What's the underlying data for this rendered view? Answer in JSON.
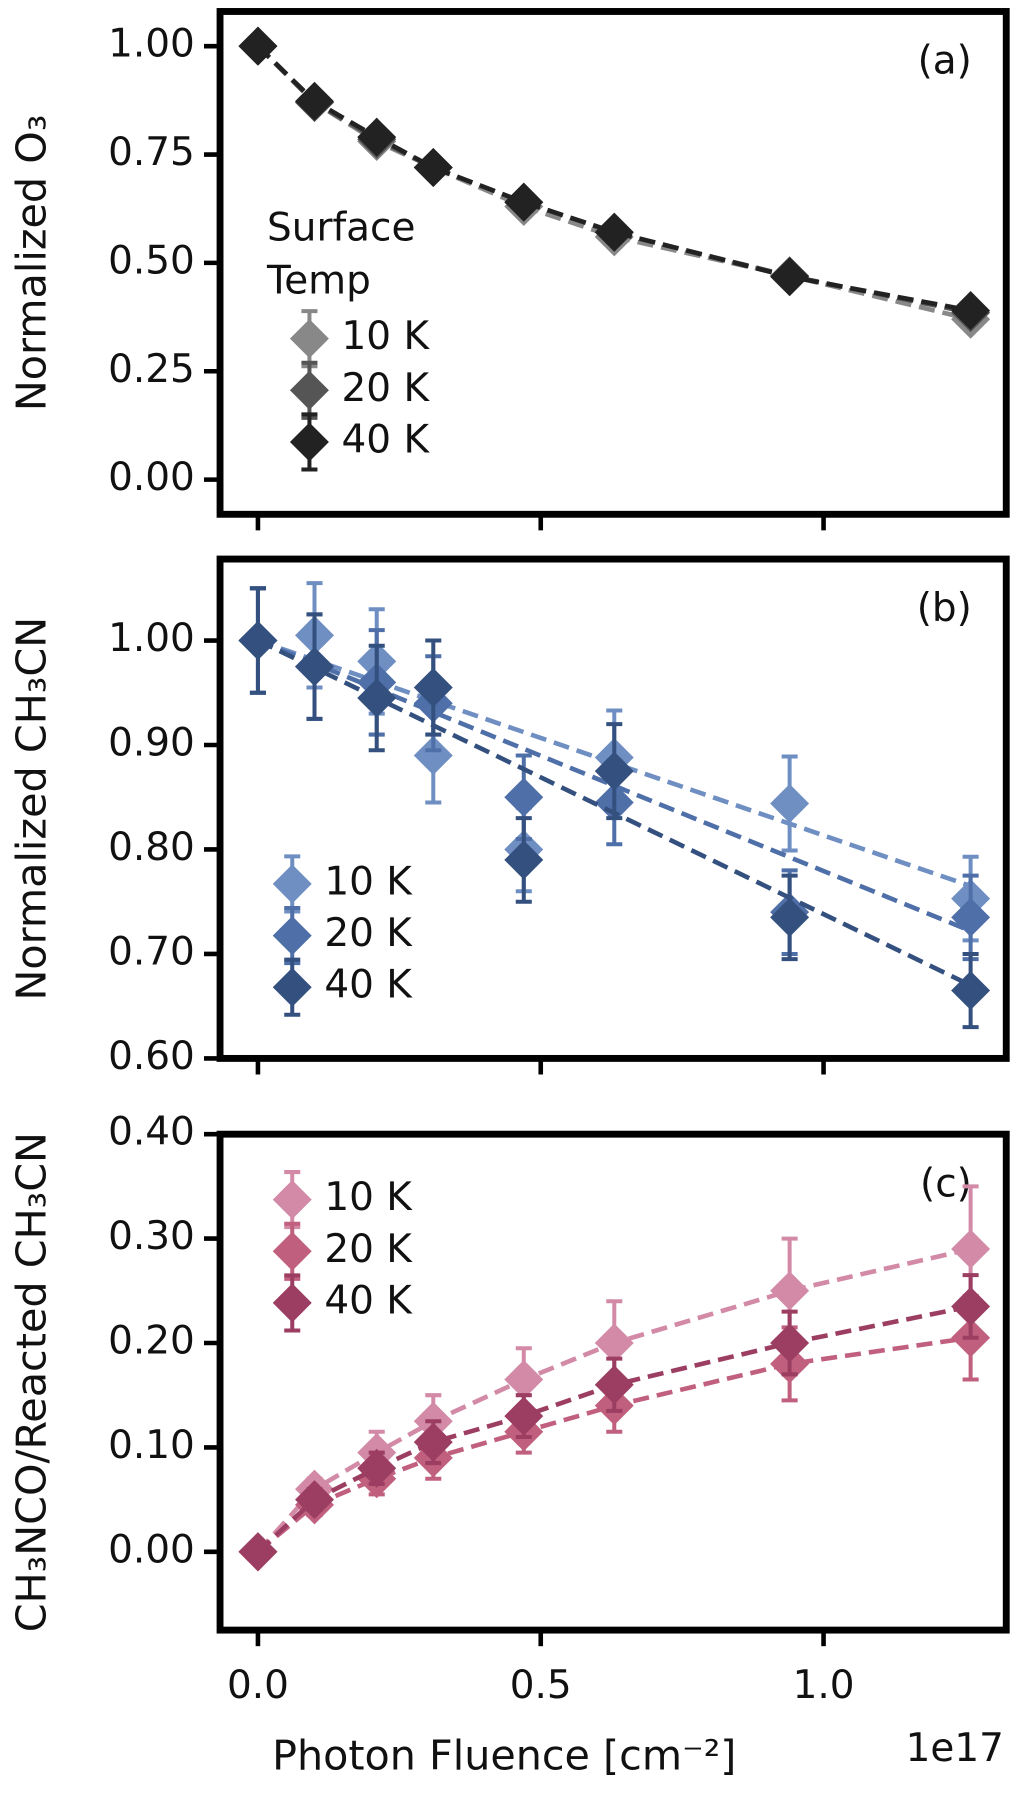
{
  "chart_data": [
    {
      "type": "line",
      "panel_label": "(a)",
      "ylabel": "Normalized O₃",
      "legend_title": "Surface\nTemp",
      "x": [
        0,
        0.1,
        0.21,
        0.31,
        0.47,
        0.63,
        0.94,
        1.26
      ],
      "xlim": [
        -0.067,
        1.323
      ],
      "ylim": [
        -0.08,
        1.08
      ],
      "yticks": [
        {
          "value": 0,
          "label": "0.00"
        },
        {
          "value": 0.25,
          "label": "0.25"
        },
        {
          "value": 0.5,
          "label": "0.50"
        },
        {
          "value": 0.75,
          "label": "0.75"
        },
        {
          "value": 1,
          "label": "1.00"
        }
      ],
      "series": [
        {
          "name": "10 K",
          "color": "#888888",
          "values": [
            1.0,
            0.87,
            0.78,
            0.72,
            0.63,
            0.56,
            0.47,
            0.37
          ],
          "errors": [
            0.01,
            0.01,
            0.01,
            0.01,
            0.01,
            0.01,
            0.01,
            0.01
          ]
        },
        {
          "name": "20 K",
          "color": "#555555",
          "values": [
            1.0,
            0.87,
            0.785,
            0.72,
            0.64,
            0.57,
            0.47,
            0.385
          ],
          "errors": [
            0.01,
            0.01,
            0.01,
            0.01,
            0.01,
            0.01,
            0.01,
            0.01
          ]
        },
        {
          "name": "40 K",
          "color": "#222222",
          "values": [
            1.0,
            0.873,
            0.79,
            0.72,
            0.64,
            0.571,
            0.468,
            0.39
          ],
          "errors": [
            0.01,
            0.01,
            0.01,
            0.01,
            0.01,
            0.01,
            0.01,
            0.01
          ]
        }
      ]
    },
    {
      "type": "fit",
      "panel_label": "(b)",
      "ylabel": "Normalized CH₃CN",
      "x": [
        0,
        0.1,
        0.21,
        0.31,
        0.47,
        0.63,
        0.94,
        1.26
      ],
      "xlim": [
        -0.067,
        1.323
      ],
      "ylim": [
        0.6,
        1.078
      ],
      "yticks": [
        {
          "value": 0.6,
          "label": "0.60"
        },
        {
          "value": 0.7,
          "label": "0.70"
        },
        {
          "value": 0.8,
          "label": "0.80"
        },
        {
          "value": 0.9,
          "label": "0.90"
        },
        {
          "value": 1,
          "label": "1.00"
        }
      ],
      "fit_x": [
        0,
        1.26
      ],
      "series": [
        {
          "name": "10 K",
          "color": "#6f8fc3",
          "values": [
            1.0,
            1.005,
            0.98,
            0.89,
            0.8,
            0.888,
            0.844,
            0.753
          ],
          "errors": [
            0.05,
            0.05,
            0.05,
            0.045,
            0.04,
            0.045,
            0.045,
            0.04
          ],
          "fit": [
            1.0,
            0.765
          ]
        },
        {
          "name": "20 K",
          "color": "#4f6fa8",
          "values": [
            1.0,
            0.975,
            0.96,
            0.94,
            0.85,
            0.845,
            0.74,
            0.735
          ],
          "errors": [
            0.05,
            0.05,
            0.05,
            0.045,
            0.04,
            0.04,
            0.04,
            0.04
          ],
          "fit": [
            1.0,
            0.722
          ]
        },
        {
          "name": "40 K",
          "color": "#34507e",
          "values": [
            1.0,
            0.975,
            0.945,
            0.955,
            0.79,
            0.875,
            0.735,
            0.665
          ],
          "errors": [
            0.05,
            0.05,
            0.05,
            0.045,
            0.04,
            0.045,
            0.04,
            0.035
          ],
          "fit": [
            1.0,
            0.67
          ]
        }
      ]
    },
    {
      "type": "line",
      "panel_label": "(c)",
      "ylabel": "CH₃NCO/Reacted CH₃CN",
      "xlabel": "Photon Fluence [cm⁻²]",
      "x_offset": "1e17",
      "x": [
        0,
        0.1,
        0.21,
        0.31,
        0.47,
        0.63,
        0.94,
        1.26
      ],
      "xlim": [
        -0.067,
        1.323
      ],
      "xticks": [
        {
          "value": 0,
          "label": "0.0"
        },
        0.5,
        {
          "value": 1,
          "label": "1.0"
        }
      ],
      "ylim": [
        -0.075,
        0.4
      ],
      "yticks": [
        {
          "value": 0,
          "label": "0.00"
        },
        {
          "value": 0.1,
          "label": "0.10"
        },
        {
          "value": 0.2,
          "label": "0.20"
        },
        {
          "value": 0.3,
          "label": "0.30"
        },
        {
          "value": 0.4,
          "label": "0.40"
        }
      ],
      "series": [
        {
          "name": "10 K",
          "color": "#d28aa6",
          "values": [
            0,
            0.06,
            0.095,
            0.125,
            0.165,
            0.2,
            0.25,
            0.29
          ],
          "errors": [
            0.005,
            0.01,
            0.02,
            0.025,
            0.03,
            0.04,
            0.05,
            0.06
          ]
        },
        {
          "name": "20 K",
          "color": "#c0607e",
          "values": [
            0,
            0.045,
            0.07,
            0.09,
            0.115,
            0.14,
            0.18,
            0.205
          ],
          "errors": [
            0.005,
            0.01,
            0.015,
            0.02,
            0.02,
            0.025,
            0.035,
            0.04
          ]
        },
        {
          "name": "40 K",
          "color": "#9c3d62",
          "values": [
            0,
            0.05,
            0.08,
            0.105,
            0.13,
            0.16,
            0.2,
            0.235
          ],
          "errors": [
            0.005,
            0.01,
            0.015,
            0.02,
            0.02,
            0.025,
            0.03,
            0.03
          ]
        }
      ]
    }
  ]
}
